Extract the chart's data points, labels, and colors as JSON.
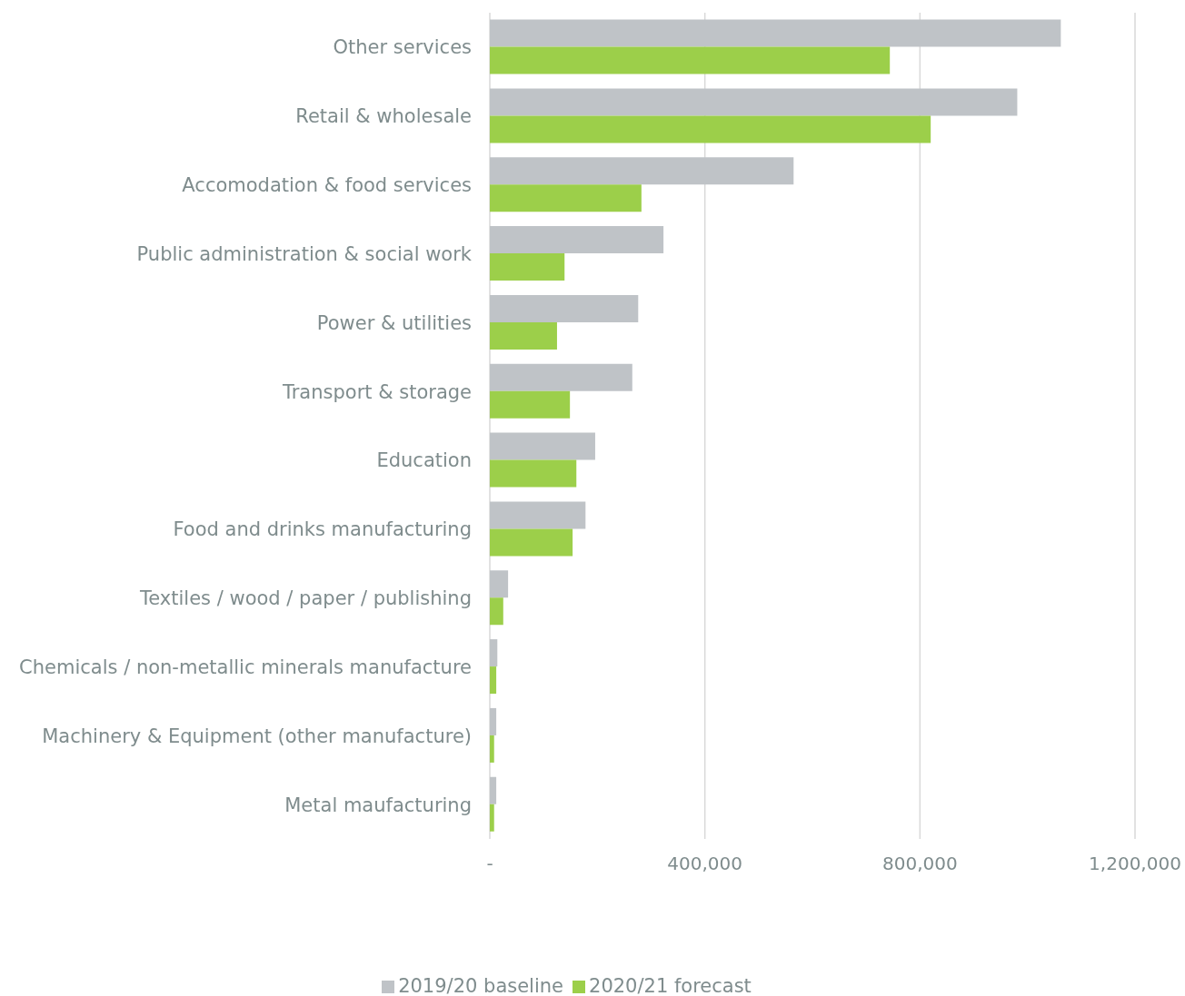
{
  "chart_data": {
    "type": "bar",
    "orientation": "horizontal",
    "categories": [
      "Other services",
      "Retail & wholesale",
      "Accomodation & food services",
      "Public administration & social work",
      "Power & utilities",
      "Transport & storage",
      "Education",
      "Food and drinks manufacturing",
      "Textiles / wood / paper / publishing",
      "Chemicals / non-metallic minerals manufacture",
      "Machinery & Equipment (other manufacture)",
      "Metal maufacturing"
    ],
    "series": [
      {
        "name": "2019/20 baseline",
        "color": "#bfc3c7",
        "values": [
          1062000,
          981000,
          565000,
          323000,
          276000,
          265000,
          196000,
          178000,
          34000,
          14000,
          12000,
          12000
        ]
      },
      {
        "name": "2020/21 forecast",
        "color": "#9ccf4a",
        "values": [
          744000,
          820000,
          282000,
          139000,
          125000,
          149000,
          161000,
          154000,
          25000,
          12000,
          8000,
          8000
        ]
      }
    ],
    "xlim": [
      0,
      1200000
    ],
    "xticks": [
      {
        "value": 0,
        "label": "-"
      },
      {
        "value": 400000,
        "label": "400,000"
      },
      {
        "value": 800000,
        "label": "800,000"
      },
      {
        "value": 1200000,
        "label": "1,200,000"
      }
    ],
    "grid": "x",
    "legend": "bottom"
  }
}
